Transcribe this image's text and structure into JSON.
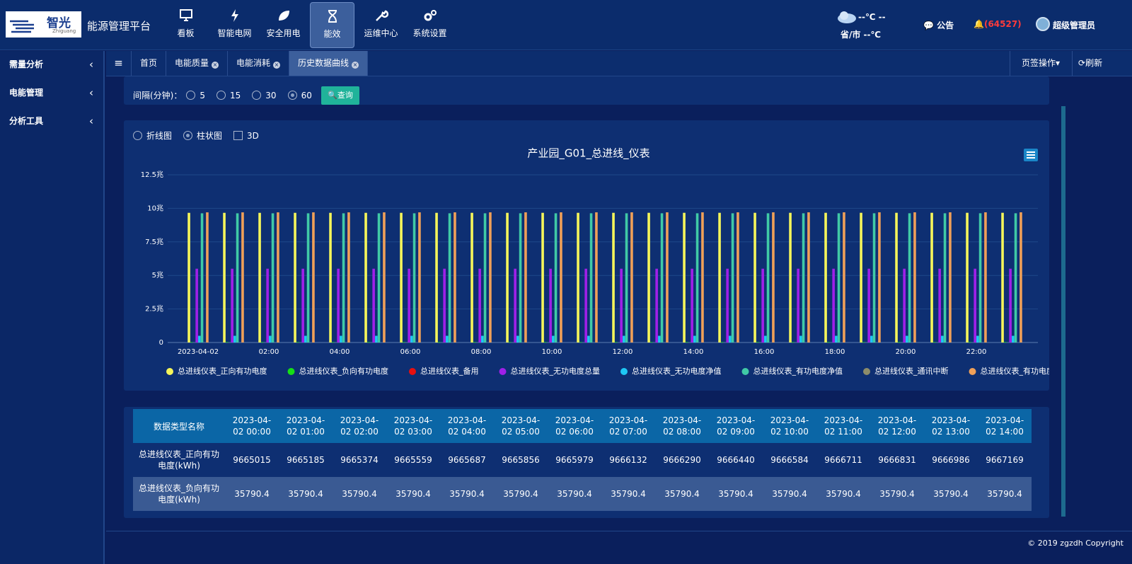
{
  "header": {
    "logo": "智光",
    "logo_sub": "Zhiguang",
    "platform": "能源管理平台",
    "nav": [
      "看板",
      "智能电网",
      "安全用电",
      "能效",
      "运维中心",
      "系统设置"
    ],
    "nav_active": 3,
    "weather_temp": "--℃ --",
    "weather_city": "省/市 --℃",
    "notice": "公告",
    "alerts": "(64527)",
    "user": "超级管理员"
  },
  "sidebar": [
    "需量分析",
    "电能管理",
    "分析工具"
  ],
  "tabs": {
    "items": [
      "首页",
      "电能质量",
      "电能消耗",
      "历史数据曲线"
    ],
    "active": 3,
    "actions": "页签操作",
    "refresh": "刷新"
  },
  "filter": {
    "label": "间隔(分钟)：",
    "options": [
      5,
      15,
      30,
      60
    ],
    "selected": 3,
    "query": "查询"
  },
  "chart_modes": {
    "options": [
      {
        "label": "折线图",
        "control": "radio"
      },
      {
        "label": "柱状图",
        "control": "radio"
      },
      {
        "label": "3D",
        "control": "checkbox"
      }
    ],
    "selected": 1
  },
  "chart_data": {
    "type": "bar",
    "title": "产业园_G01_总进线_仪表",
    "categories": [
      "2023-04-02",
      null,
      "02:00",
      null,
      "04:00",
      null,
      "06:00",
      null,
      "08:00",
      null,
      "10:00",
      null,
      "12:00",
      null,
      "14:00",
      null,
      "16:00",
      null,
      "18:00",
      null,
      "20:00",
      null,
      "22:00",
      null
    ],
    "series": [
      {
        "name": "总进线仪表_正向有功电度",
        "color": "#f5f55a",
        "values": [
          9665015,
          9665185,
          9665374,
          9665559,
          9665687,
          9665856,
          9665979,
          9666132,
          9666290,
          9666440,
          9666584,
          9666711,
          9666831,
          9666986,
          9667169,
          9667320,
          9667470,
          9667620,
          9667770,
          9667920,
          9668070,
          9668220,
          9668370,
          9668520
        ]
      },
      {
        "name": "总进线仪表_负向有功电度",
        "color": "#16e016",
        "values": [
          35790.4,
          35790.4,
          35790.4,
          35790.4,
          35790.4,
          35790.4,
          35790.4,
          35790.4,
          35790.4,
          35790.4,
          35790.4,
          35790.4,
          35790.4,
          35790.4,
          35790.4,
          35790.4,
          35790.4,
          35790.4,
          35790.4,
          35790.4,
          35790.4,
          35790.4,
          35790.4,
          35790.4
        ]
      },
      {
        "name": "总进线仪表_备用",
        "color": "#e81010",
        "values": [
          0,
          0,
          0,
          0,
          0,
          0,
          0,
          0,
          0,
          0,
          0,
          0,
          0,
          0,
          0,
          0,
          0,
          0,
          0,
          0,
          0,
          0,
          0,
          0
        ]
      },
      {
        "name": "总进线仪表_无功电度总量",
        "color": "#a020e8",
        "values": [
          5500000,
          5500000,
          5500000,
          5500000,
          5500000,
          5500000,
          5500000,
          5500000,
          5500000,
          5500000,
          5500000,
          5500000,
          5500000,
          5500000,
          5500000,
          5500000,
          5500000,
          5500000,
          5500000,
          5500000,
          5500000,
          5500000,
          5500000,
          5500000
        ]
      },
      {
        "name": "总进线仪表_无功电度净值",
        "color": "#1ec8f5",
        "values": [
          500000,
          500000,
          500000,
          500000,
          500000,
          500000,
          500000,
          500000,
          500000,
          500000,
          500000,
          500000,
          500000,
          500000,
          500000,
          500000,
          500000,
          500000,
          500000,
          500000,
          500000,
          500000,
          500000,
          500000
        ]
      },
      {
        "name": "总进线仪表_有功电度净值",
        "color": "#40caa6",
        "values": [
          9629224.6,
          9629394.6,
          9629583.6,
          9629768.6,
          9629896.6,
          9630065.6,
          9630188.6,
          9630341.6,
          9630499.6,
          9630649.6,
          9630793.6,
          9630920.6,
          9631040.6,
          9631195.6,
          9631378.6,
          9631529.6,
          9631679.6,
          9631829.6,
          9631979.6,
          9632129.6,
          9632279.6,
          9632429.6,
          9632579.6,
          9632729.6
        ]
      },
      {
        "name": "总进线仪表_通讯中断",
        "color": "#8c8c6a",
        "values": [
          0,
          0,
          0,
          0,
          0,
          0,
          0,
          0,
          0,
          0,
          0,
          0,
          0,
          0,
          0,
          0,
          0,
          0,
          0,
          0,
          0,
          0,
          0,
          0
        ]
      },
      {
        "name": "总进线仪表_有功电度总量",
        "color": "#f0a058",
        "values": [
          9700805.4,
          9700975.4,
          9701164.4,
          9701349.4,
          9701477.4,
          9701646.4,
          9701769.4,
          9701922.4,
          9702080.4,
          9702230.4,
          9702374.4,
          9702501.4,
          9702621.4,
          9702776.4,
          9702959.4,
          9703110.4,
          9703260.4,
          9703410.4,
          9703560.4,
          9703710.4,
          9703860.4,
          9704010.4,
          9704160.4,
          9704310.4
        ]
      }
    ],
    "ylim": [
      0,
      12500000
    ],
    "yticks": [
      0,
      {
        "value": 2500000,
        "label": "2.5兆"
      },
      {
        "value": 5000000,
        "label": "5兆"
      },
      {
        "value": 7500000,
        "label": "7.5兆"
      },
      {
        "value": 10000000,
        "label": "10兆"
      },
      {
        "value": 12500000,
        "label": "12.5兆"
      }
    ],
    "grid": true,
    "legend": "bottom"
  },
  "table": {
    "corner": "数据类型名称",
    "columns": [
      "2023-04-02 00:00",
      "2023-04-02 01:00",
      "2023-04-02 02:00",
      "2023-04-02 03:00",
      "2023-04-02 04:00",
      "2023-04-02 05:00",
      "2023-04-02 06:00",
      "2023-04-02 07:00",
      "2023-04-02 08:00",
      "2023-04-02 09:00",
      "2023-04-02 10:00",
      "2023-04-02 11:00",
      "2023-04-02 12:00",
      "2023-04-02 13:00",
      "2023-04-02 14:00"
    ],
    "rows": [
      {
        "name": "总进线仪表_正向有功电度(kWh)",
        "values": [
          9665015,
          9665185,
          9665374,
          9665559,
          9665687,
          9665856,
          9665979,
          9666132,
          9666290,
          9666440,
          9666584,
          9666711,
          9666831,
          9666986,
          9667169
        ]
      },
      {
        "name": "总进线仪表_负向有功电度(kWh)",
        "values": [
          35790.4,
          35790.4,
          35790.4,
          35790.4,
          35790.4,
          35790.4,
          35790.4,
          35790.4,
          35790.4,
          35790.4,
          35790.4,
          35790.4,
          35790.4,
          35790.4,
          35790.4
        ]
      }
    ]
  },
  "footer": "© 2019 zgzdh Copyright"
}
